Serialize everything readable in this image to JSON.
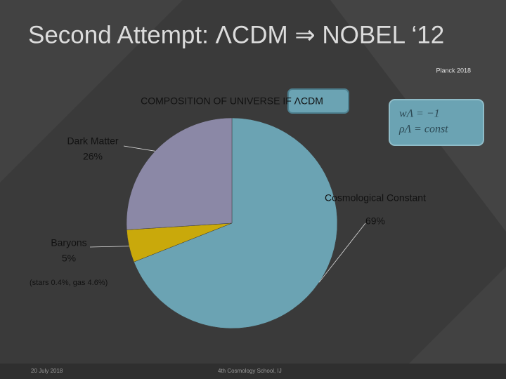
{
  "slide": {
    "title": "Second Attempt: ΛCDM ⇒ NOBEL ‘12",
    "source": "Planck 2018",
    "equations": [
      "wΛ = −1",
      "ρΛ = const"
    ],
    "date": "20 July 2018",
    "footer": "4th Cosmology School, IJ"
  },
  "chart_data": {
    "type": "pie",
    "title": "COMPOSITION OF UNIVERSE IF ΛCDM",
    "categories": [
      "Cosmological Constant",
      "Baryons",
      "Dark Matter"
    ],
    "values": [
      69,
      5,
      26
    ],
    "value_labels": [
      "69%",
      "5%",
      "26%"
    ],
    "colors": [
      "#6ba3b3",
      "#c9a90b",
      "#8b88a6"
    ],
    "annotation": "(stars 0.4%, gas 4.6%)"
  }
}
